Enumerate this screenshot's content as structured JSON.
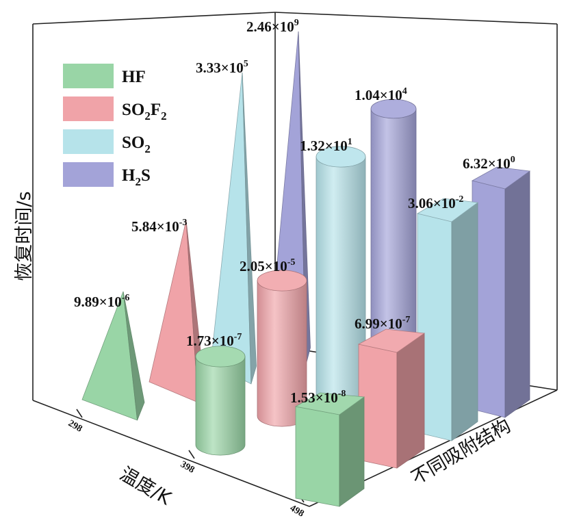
{
  "chart_data": {
    "type": "bar3d",
    "yaxis": {
      "label": "恢复时间/s"
    },
    "xaxis": {
      "label": "温度/K",
      "ticks": [
        "298",
        "398",
        "498"
      ]
    },
    "zaxis": {
      "label": "不同吸附结构"
    },
    "legend": [
      {
        "name": "HF",
        "color": "#99d5a6"
      },
      {
        "name": "SO2F2",
        "color": "#f0a3a8"
      },
      {
        "name": "SO2",
        "color": "#b6e3ea"
      },
      {
        "name": "H2S",
        "color": "#a3a3d8"
      }
    ],
    "data_labels": [
      {
        "series": "HF",
        "temperature": "298",
        "shape": "pyramid",
        "mantissa": "9.89",
        "exponent": "-6"
      },
      {
        "series": "SO2F2",
        "temperature": "298",
        "shape": "pyramid",
        "mantissa": "5.84",
        "exponent": "-3"
      },
      {
        "series": "SO2",
        "temperature": "298",
        "shape": "pyramid",
        "mantissa": "3.33",
        "exponent": "5"
      },
      {
        "series": "H2S",
        "temperature": "298",
        "shape": "pyramid",
        "mantissa": "2.46",
        "exponent": "9"
      },
      {
        "series": "HF",
        "temperature": "398",
        "shape": "cylinder",
        "mantissa": "1.73",
        "exponent": "-7"
      },
      {
        "series": "SO2F2",
        "temperature": "398",
        "shape": "cylinder",
        "mantissa": "2.05",
        "exponent": "-5"
      },
      {
        "series": "SO2",
        "temperature": "398",
        "shape": "cylinder",
        "mantissa": "1.32",
        "exponent": "1"
      },
      {
        "series": "H2S",
        "temperature": "398",
        "shape": "cylinder",
        "mantissa": "1.04",
        "exponent": "4"
      },
      {
        "series": "HF",
        "temperature": "498",
        "shape": "box",
        "mantissa": "1.53",
        "exponent": "-8"
      },
      {
        "series": "SO2F2",
        "temperature": "498",
        "shape": "box",
        "mantissa": "6.99",
        "exponent": "-7"
      },
      {
        "series": "SO2",
        "temperature": "498",
        "shape": "box",
        "mantissa": "3.06",
        "exponent": "-2"
      },
      {
        "series": "H2S",
        "temperature": "498",
        "shape": "box",
        "mantissa": "6.32",
        "exponent": "0"
      }
    ]
  }
}
